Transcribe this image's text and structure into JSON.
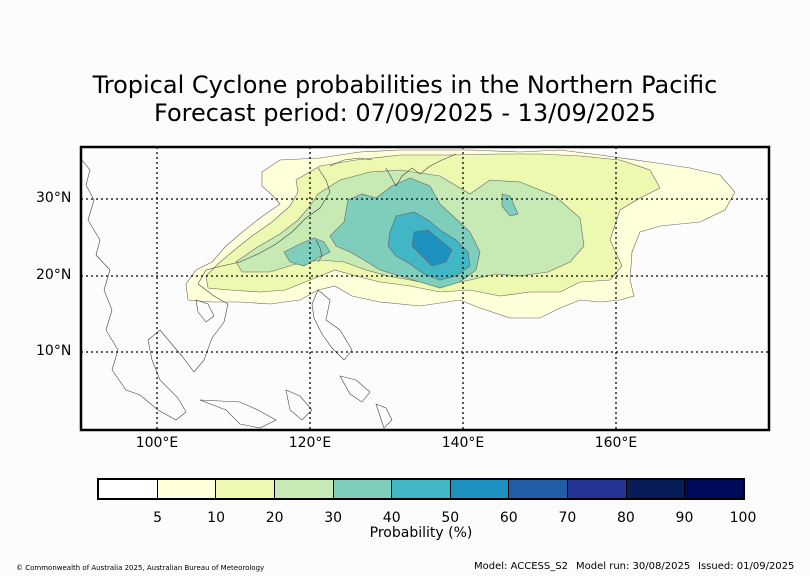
{
  "title_line1": "Tropical Cyclone probabilities in the Northern Pacific",
  "title_line2": "Forecast period: 07/09/2025 - 13/09/2025",
  "latitude_labels": [
    "30°N",
    "20°N",
    "10°N"
  ],
  "longitude_labels": [
    "100°E",
    "120°E",
    "140°E",
    "160°E"
  ],
  "colorbar": {
    "label": "Probability (%)",
    "ticks": [
      "5",
      "10",
      "20",
      "30",
      "40",
      "50",
      "60",
      "70",
      "80",
      "90",
      "100"
    ],
    "colors": [
      "#ffffff",
      "#ffffd9",
      "#edf8b1",
      "#c7e9b4",
      "#7fcdbb",
      "#41b6c4",
      "#1d91c0",
      "#225ea8",
      "#253494",
      "#081d58",
      "#000a5a"
    ]
  },
  "footer": {
    "copyright": "© Commonwealth of Australia 2025, Australian Bureau of Meteorology",
    "model": "Model: ACCESS_S2",
    "model_run": "Model run: 30/08/2025",
    "issued": "Issued: 01/09/2025"
  },
  "contour_colors": {
    "level_5": "#ffffd9",
    "level_10": "#edf8b1",
    "level_20": "#c7e9b4",
    "level_30": "#7fcdbb",
    "level_40": "#41b6c4",
    "level_50": "#1d91c0"
  }
}
